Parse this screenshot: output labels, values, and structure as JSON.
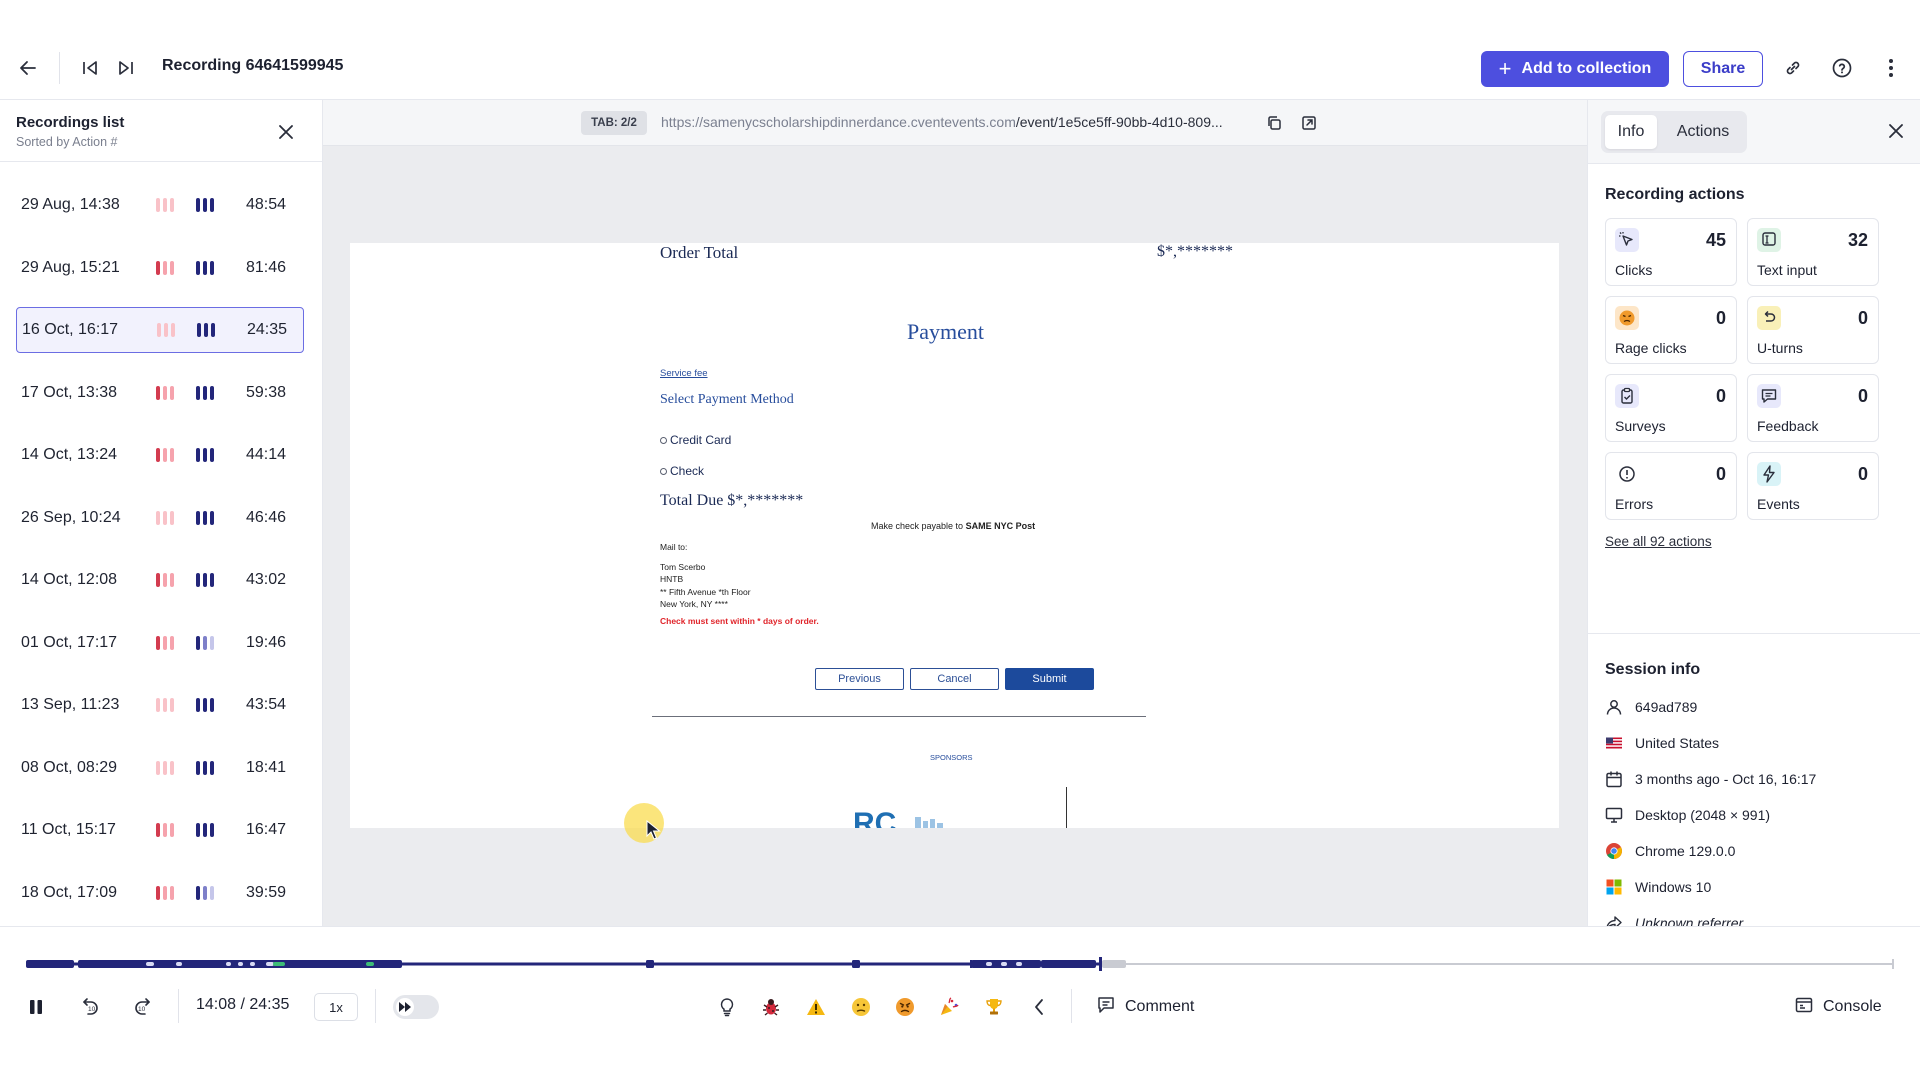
{
  "header": {
    "title": "Recording 64641599945",
    "add_to_collection": "Add to collection",
    "share": "Share"
  },
  "sidebar": {
    "title": "Recordings list",
    "subtitle": "Sorted by Action #",
    "items": [
      {
        "date": "29 Aug, 14:38",
        "duration": "48:54",
        "active": false
      },
      {
        "date": "29 Aug, 15:21",
        "duration": "81:46",
        "active": false
      },
      {
        "date": "16 Oct, 16:17",
        "duration": "24:35",
        "active": true
      },
      {
        "date": "17 Oct, 13:38",
        "duration": "59:38",
        "active": false
      },
      {
        "date": "14 Oct, 13:24",
        "duration": "44:14",
        "active": false
      },
      {
        "date": "26 Sep, 10:24",
        "duration": "46:46",
        "active": false
      },
      {
        "date": "14 Oct, 12:08",
        "duration": "43:02",
        "active": false
      },
      {
        "date": "01 Oct, 17:17",
        "duration": "19:46",
        "active": false
      },
      {
        "date": "13 Sep, 11:23",
        "duration": "43:54",
        "active": false
      },
      {
        "date": "08 Oct, 08:29",
        "duration": "18:41",
        "active": false
      },
      {
        "date": "11 Oct, 15:17",
        "duration": "16:47",
        "active": false
      },
      {
        "date": "18 Oct, 17:09",
        "duration": "39:59",
        "active": false
      }
    ]
  },
  "viewer": {
    "tab_badge": "TAB: 2/2",
    "url_domain": "https://samenycscholarshipdinnerdance.cventevents.com",
    "url_path": "/event/1e5ce5ff-90bb-4d10-809...",
    "page": {
      "order_total_label": "Order Total",
      "order_total_value": "$*,*******",
      "payment_heading": "Payment",
      "service_fee": "Service fee",
      "select_method": "Select Payment Method",
      "credit_card": "Credit Card",
      "check": "Check",
      "total_due": "Total Due $*,*******",
      "check_payable_prefix": "Make check payable to",
      "check_payable_name": "SAME NYC Post",
      "mail_to": "Mail to:",
      "address_1": "Tom Scerbo",
      "address_2": "HNTB",
      "address_3": "** Fifth Avenue *th Floor",
      "address_4": "New York, NY ****",
      "warning": "Check must sent within * days of order.",
      "btn_previous": "Previous",
      "btn_cancel": "Cancel",
      "btn_submit": "Submit",
      "sponsors": "SPONSORS"
    }
  },
  "panel": {
    "tabs": [
      "Info",
      "Actions"
    ],
    "actions_heading": "Recording actions",
    "cards": [
      {
        "label": "Clicks",
        "value": "45",
        "icon": "cursor-click-icon"
      },
      {
        "label": "Text input",
        "value": "32",
        "icon": "text-input-icon"
      },
      {
        "label": "Rage clicks",
        "value": "0",
        "icon": "rage-face-icon"
      },
      {
        "label": "U-turns",
        "value": "0",
        "icon": "u-turn-icon"
      },
      {
        "label": "Surveys",
        "value": "0",
        "icon": "clipboard-check-icon"
      },
      {
        "label": "Feedback",
        "value": "0",
        "icon": "feedback-icon"
      },
      {
        "label": "Errors",
        "value": "0",
        "icon": "error-icon"
      },
      {
        "label": "Events",
        "value": "0",
        "icon": "lightning-icon"
      }
    ],
    "see_all": "See all 92 actions",
    "session_heading": "Session info",
    "session": [
      {
        "icon": "user-icon",
        "text": "649ad789"
      },
      {
        "icon": "us-flag-icon",
        "text": "United States"
      },
      {
        "icon": "calendar-icon",
        "text": "3 months ago - Oct 16, 16:17"
      },
      {
        "icon": "desktop-icon",
        "text": "Desktop (2048 × 991)"
      },
      {
        "icon": "chrome-icon",
        "text": "Chrome 129.0.0"
      },
      {
        "icon": "windows-icon",
        "text": "Windows 10"
      },
      {
        "icon": "referrer-icon",
        "text": "Unknown referrer"
      }
    ]
  },
  "player": {
    "time": "14:08 / 24:35",
    "speed": "1x",
    "progress_fraction": 0.575,
    "comment": "Comment",
    "console": "Console"
  },
  "colors": {
    "accent": "#4d4fdf",
    "timeline": "#23267a",
    "rage": "#d33b4f",
    "rage_light": "#f6a3ad"
  }
}
